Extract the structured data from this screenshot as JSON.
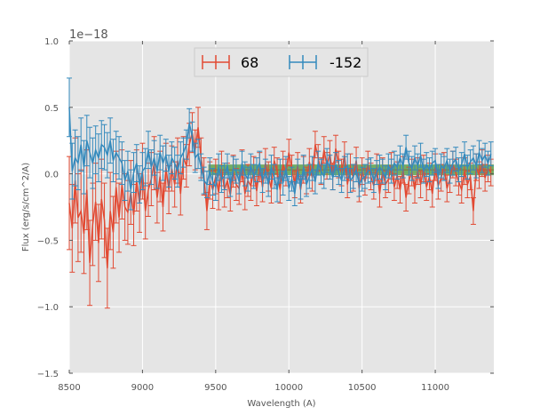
{
  "chart_data": {
    "type": "line",
    "title": "",
    "xlabel": "Wavelength (A)",
    "ylabel": "Flux (erg/s/cm^2/A)",
    "offset_label": "1e−18",
    "xlim": [
      8500,
      11400
    ],
    "ylim": [
      -1.5,
      1.0
    ],
    "grid": true,
    "legend_position": "top-center",
    "x_ticks": [
      8500,
      9000,
      9500,
      10000,
      10500,
      11000
    ],
    "x_tick_labels": [
      "8500",
      "9000",
      "9500",
      "10000",
      "10500",
      "11000"
    ],
    "y_ticks": [
      -1.5,
      -1.0,
      -0.5,
      0.0,
      0.5,
      1.0
    ],
    "y_tick_labels": [
      "−1.5",
      "−1.0",
      "−0.5",
      "0.0",
      "0.5",
      "1.0"
    ],
    "x": [
      8500,
      8520,
      8540,
      8560,
      8580,
      8600,
      8620,
      8640,
      8660,
      8680,
      8700,
      8720,
      8740,
      8760,
      8780,
      8800,
      8820,
      8840,
      8860,
      8880,
      8900,
      8920,
      8940,
      8960,
      8980,
      9000,
      9020,
      9040,
      9060,
      9080,
      9100,
      9120,
      9140,
      9160,
      9180,
      9200,
      9220,
      9240,
      9260,
      9280,
      9300,
      9320,
      9340,
      9360,
      9380,
      9400,
      9420,
      9440,
      9460,
      9480,
      9500,
      9520,
      9540,
      9560,
      9580,
      9600,
      9620,
      9640,
      9660,
      9680,
      9700,
      9720,
      9740,
      9760,
      9780,
      9800,
      9820,
      9840,
      9860,
      9880,
      9900,
      9920,
      9940,
      9960,
      9980,
      10000,
      10020,
      10040,
      10060,
      10080,
      10100,
      10120,
      10140,
      10160,
      10180,
      10200,
      10220,
      10240,
      10260,
      10280,
      10300,
      10320,
      10340,
      10360,
      10380,
      10400,
      10420,
      10440,
      10460,
      10480,
      10500,
      10520,
      10540,
      10560,
      10580,
      10600,
      10620,
      10640,
      10660,
      10680,
      10700,
      10720,
      10740,
      10760,
      10780,
      10800,
      10820,
      10840,
      10860,
      10880,
      10900,
      10920,
      10940,
      10960,
      10980,
      11000,
      11020,
      11040,
      11060,
      11080,
      11100,
      11120,
      11140,
      11160,
      11180,
      11200,
      11220,
      11240,
      11260,
      11280,
      11300,
      11320,
      11340,
      11360,
      11380
    ],
    "series": [
      {
        "name": "68",
        "color": "#E24A33",
        "values": [
          -0.22,
          -0.41,
          -0.05,
          -0.33,
          -0.28,
          -0.45,
          -0.12,
          -0.67,
          -0.38,
          -0.21,
          -0.52,
          -0.19,
          -0.35,
          -0.71,
          -0.28,
          -0.44,
          -0.1,
          -0.33,
          -0.08,
          -0.25,
          -0.29,
          -0.14,
          -0.31,
          -0.05,
          -0.22,
          0.02,
          -0.28,
          -0.12,
          -0.04,
          0.08,
          -0.18,
          -0.02,
          -0.25,
          0.05,
          -0.12,
          0.04,
          -0.08,
          0.1,
          -0.15,
          0.12,
          0.06,
          0.22,
          0.31,
          0.18,
          0.35,
          0.12,
          -0.02,
          -0.28,
          -0.05,
          -0.12,
          -0.02,
          -0.14,
          0.04,
          -0.12,
          -0.05,
          -0.16,
          0.02,
          -0.08,
          -0.11,
          0.06,
          -0.15,
          -0.05,
          -0.09,
          0.02,
          -0.13,
          0.05,
          -0.1,
          0.08,
          -0.02,
          -0.11,
          0.1,
          0.02,
          -0.12,
          0.07,
          0.01,
          0.16,
          0.04,
          -0.08,
          0.06,
          -0.12,
          0.03,
          -0.05,
          0.09,
          -0.03,
          0.22,
          0.12,
          0.02,
          0.18,
          0.06,
          0.15,
          -0.02,
          0.19,
          0.07,
          0.01,
          0.14,
          -0.08,
          0.05,
          -0.03,
          0.1,
          -0.11,
          0.02,
          -0.06,
          0.07,
          -0.02,
          -0.09,
          0.05,
          -0.15,
          0.02,
          -0.08,
          -0.04,
          0.06,
          -0.1,
          -0.01,
          -0.12,
          0.03,
          -0.18,
          -0.05,
          0.01,
          -0.12,
          0.02,
          -0.08,
          0.04,
          -0.1,
          -0.02,
          -0.15,
          0.05,
          -0.09,
          -0.03,
          0.06,
          -0.11,
          -0.04,
          0.07,
          0.01,
          -0.06,
          -0.12,
          0.02,
          -0.08,
          -0.02,
          -0.28,
          0.05,
          -0.01,
          0.08,
          -0.03,
          0.04,
          0.01
        ],
        "errors": [
          0.35,
          0.33,
          0.32,
          0.33,
          0.31,
          0.3,
          0.3,
          0.32,
          0.31,
          0.29,
          0.29,
          0.3,
          0.28,
          0.3,
          0.29,
          0.27,
          0.27,
          0.26,
          0.26,
          0.25,
          0.24,
          0.24,
          0.23,
          0.23,
          0.22,
          0.21,
          0.21,
          0.2,
          0.2,
          0.2,
          0.19,
          0.19,
          0.18,
          0.18,
          0.18,
          0.17,
          0.17,
          0.17,
          0.16,
          0.16,
          0.16,
          0.16,
          0.15,
          0.15,
          0.15,
          0.15,
          0.14,
          0.14,
          0.14,
          0.14,
          0.13,
          0.13,
          0.13,
          0.13,
          0.13,
          0.12,
          0.12,
          0.12,
          0.12,
          0.12,
          0.12,
          0.12,
          0.11,
          0.11,
          0.11,
          0.11,
          0.11,
          0.11,
          0.11,
          0.11,
          0.1,
          0.1,
          0.1,
          0.1,
          0.1,
          0.1,
          0.1,
          0.1,
          0.1,
          0.1,
          0.1,
          0.1,
          0.1,
          0.1,
          0.1,
          0.1,
          0.1,
          0.1,
          0.1,
          0.1,
          0.1,
          0.1,
          0.1,
          0.1,
          0.1,
          0.1,
          0.1,
          0.1,
          0.1,
          0.1,
          0.1,
          0.1,
          0.1,
          0.1,
          0.1,
          0.1,
          0.1,
          0.1,
          0.1,
          0.1,
          0.1,
          0.1,
          0.1,
          0.1,
          0.1,
          0.1,
          0.1,
          0.1,
          0.1,
          0.1,
          0.1,
          0.1,
          0.1,
          0.1,
          0.1,
          0.1,
          0.1,
          0.1,
          0.1,
          0.1,
          0.1,
          0.1,
          0.1,
          0.1,
          0.1,
          0.1,
          0.1,
          0.1,
          0.1,
          0.1,
          0.1,
          0.1,
          0.1,
          0.1,
          0.1
        ]
      },
      {
        "name": "-152",
        "color": "#348ABD",
        "values": [
          0.5,
          0.02,
          0.12,
          0.08,
          0.22,
          0.05,
          0.25,
          0.16,
          0.08,
          0.18,
          0.12,
          0.22,
          0.2,
          0.14,
          0.25,
          0.1,
          0.16,
          0.12,
          0.08,
          -0.05,
          0.02,
          -0.12,
          0.01,
          0.08,
          -0.08,
          0.02,
          0.05,
          0.18,
          0.05,
          0.12,
          0.02,
          0.16,
          0.08,
          0.14,
          0.02,
          0.12,
          0.08,
          0.02,
          0.12,
          0.16,
          0.22,
          0.38,
          0.28,
          0.12,
          0.15,
          0.05,
          -0.05,
          -0.08,
          0.02,
          -0.06,
          -0.1,
          0.05,
          -0.04,
          -0.02,
          0.06,
          -0.08,
          0.04,
          0.02,
          -0.06,
          0.08,
          0.0,
          -0.04,
          0.06,
          -0.02,
          0.03,
          0.08,
          -0.05,
          0.02,
          -0.08,
          0.05,
          -0.02,
          -0.12,
          0.02,
          -0.07,
          0.04,
          -0.11,
          -0.04,
          -0.15,
          0.02,
          -0.1,
          0.05,
          -0.08,
          -0.02,
          0.04,
          -0.06,
          0.08,
          0.02,
          -0.02,
          0.1,
          0.05,
          -0.03,
          0.07,
          0.01,
          -0.05,
          0.04,
          0.06,
          -0.05,
          -0.02,
          0.03,
          -0.08,
          -0.04,
          -0.02,
          0.02,
          0.03,
          -0.05,
          0.01,
          0.05,
          0.02,
          -0.03,
          0.06,
          0.02,
          0.08,
          0.05,
          0.12,
          0.06,
          0.2,
          0.08,
          0.04,
          0.12,
          0.06,
          0.14,
          0.02,
          0.07,
          0.03,
          0.08,
          0.1,
          -0.02,
          0.06,
          0.04,
          0.1,
          0.02,
          0.08,
          0.11,
          0.03,
          0.07,
          0.15,
          0.05,
          0.09,
          0.12,
          0.06,
          0.16,
          0.1,
          0.14,
          0.08,
          0.15
        ],
        "errors": [
          0.22,
          0.21,
          0.21,
          0.2,
          0.2,
          0.2,
          0.19,
          0.19,
          0.19,
          0.18,
          0.18,
          0.18,
          0.17,
          0.17,
          0.17,
          0.16,
          0.16,
          0.16,
          0.16,
          0.15,
          0.15,
          0.15,
          0.15,
          0.14,
          0.14,
          0.14,
          0.14,
          0.14,
          0.13,
          0.13,
          0.13,
          0.13,
          0.13,
          0.12,
          0.12,
          0.12,
          0.12,
          0.12,
          0.12,
          0.11,
          0.11,
          0.11,
          0.11,
          0.11,
          0.11,
          0.1,
          0.1,
          0.1,
          0.1,
          0.1,
          0.1,
          0.1,
          0.1,
          0.1,
          0.09,
          0.09,
          0.09,
          0.09,
          0.09,
          0.09,
          0.09,
          0.09,
          0.09,
          0.09,
          0.09,
          0.09,
          0.09,
          0.09,
          0.09,
          0.09,
          0.09,
          0.09,
          0.09,
          0.09,
          0.09,
          0.09,
          0.09,
          0.09,
          0.09,
          0.09,
          0.09,
          0.09,
          0.09,
          0.09,
          0.09,
          0.09,
          0.09,
          0.09,
          0.09,
          0.09,
          0.09,
          0.09,
          0.09,
          0.09,
          0.09,
          0.09,
          0.09,
          0.09,
          0.09,
          0.09,
          0.09,
          0.09,
          0.09,
          0.09,
          0.09,
          0.09,
          0.09,
          0.09,
          0.09,
          0.09,
          0.09,
          0.09,
          0.09,
          0.09,
          0.09,
          0.09,
          0.09,
          0.09,
          0.09,
          0.09,
          0.09,
          0.09,
          0.09,
          0.09,
          0.09,
          0.09,
          0.09,
          0.09,
          0.09,
          0.09,
          0.09,
          0.09,
          0.09,
          0.09,
          0.09,
          0.09,
          0.09,
          0.09,
          0.09,
          0.09,
          0.09,
          0.09,
          0.09,
          0.09,
          0.09
        ]
      }
    ],
    "band": {
      "x": [
        9450,
        11400
      ],
      "y": [
        -0.01,
        0.07
      ],
      "color": "#4a9a3a",
      "center_color": "#8a6a3a"
    },
    "legend": [
      "68",
      "-152"
    ]
  }
}
